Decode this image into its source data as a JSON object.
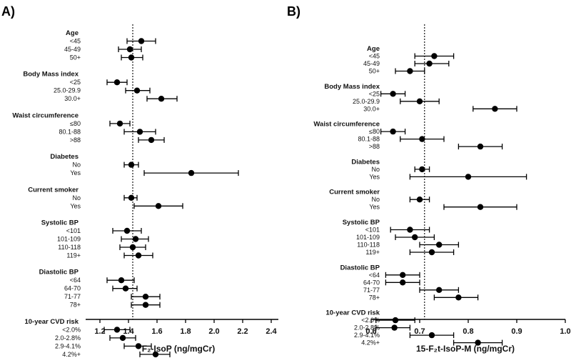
{
  "chart_data": [
    {
      "type": "forest",
      "panel_label": "A)",
      "xlabel": "F₂-IsoP  (ng/mgCr)",
      "xlim": [
        1.1,
        2.45
      ],
      "xticks": [
        "1.2",
        "1.4",
        "1.6",
        "1.8",
        "2.0",
        "2.2",
        "2.4"
      ],
      "reference_line": 1.43,
      "groups": [
        {
          "name": "Age",
          "rows": [
            {
              "label": "<45",
              "est": 1.49,
              "lo": 1.39,
              "hi": 1.59
            },
            {
              "label": "45-49",
              "est": 1.41,
              "lo": 1.33,
              "hi": 1.49
            },
            {
              "label": "50+",
              "est": 1.42,
              "lo": 1.35,
              "hi": 1.5
            }
          ]
        },
        {
          "name": "Body Mass index",
          "rows": [
            {
              "label": "<25",
              "est": 1.32,
              "lo": 1.25,
              "hi": 1.39
            },
            {
              "label": "25.0-29.9",
              "est": 1.46,
              "lo": 1.38,
              "hi": 1.55
            },
            {
              "label": "30.0+",
              "est": 1.63,
              "lo": 1.53,
              "hi": 1.74
            }
          ]
        },
        {
          "name": "Waist circumference",
          "rows": [
            {
              "label": "≤80",
              "est": 1.34,
              "lo": 1.27,
              "hi": 1.41
            },
            {
              "label": "80.1-88",
              "est": 1.48,
              "lo": 1.37,
              "hi": 1.59
            },
            {
              "label": ">88",
              "est": 1.56,
              "lo": 1.47,
              "hi": 1.65
            }
          ]
        },
        {
          "name": "Diabetes",
          "rows": [
            {
              "label": "No",
              "est": 1.42,
              "lo": 1.37,
              "hi": 1.47
            },
            {
              "label": "Yes",
              "est": 1.84,
              "lo": 1.51,
              "hi": 2.17
            }
          ]
        },
        {
          "name": "Current smoker",
          "rows": [
            {
              "label": "No",
              "est": 1.42,
              "lo": 1.37,
              "hi": 1.46
            },
            {
              "label": "Yes",
              "est": 1.61,
              "lo": 1.44,
              "hi": 1.78
            }
          ]
        },
        {
          "name": "Systolic BP",
          "rows": [
            {
              "label": "<101",
              "est": 1.39,
              "lo": 1.29,
              "hi": 1.49
            },
            {
              "label": "101-109",
              "est": 1.45,
              "lo": 1.35,
              "hi": 1.54
            },
            {
              "label": "110-118",
              "est": 1.43,
              "lo": 1.34,
              "hi": 1.52
            },
            {
              "label": "119+",
              "est": 1.47,
              "lo": 1.37,
              "hi": 1.57
            }
          ]
        },
        {
          "name": "Diastolic  BP",
          "rows": [
            {
              "label": "<64",
              "est": 1.35,
              "lo": 1.25,
              "hi": 1.44
            },
            {
              "label": "64-70",
              "est": 1.38,
              "lo": 1.29,
              "hi": 1.46
            },
            {
              "label": "71-77",
              "est": 1.52,
              "lo": 1.42,
              "hi": 1.62
            },
            {
              "label": "78+",
              "est": 1.52,
              "lo": 1.42,
              "hi": 1.62
            }
          ]
        },
        {
          "name": "10-year CVD risk",
          "rows": [
            {
              "label": "<2.0%",
              "est": 1.32,
              "lo": 1.23,
              "hi": 1.41
            },
            {
              "label": "2.0-2.8%",
              "est": 1.36,
              "lo": 1.27,
              "hi": 1.45
            },
            {
              "label": "2.9-4.1%",
              "est": 1.47,
              "lo": 1.37,
              "hi": 1.56
            },
            {
              "label": "4.2%+",
              "est": 1.59,
              "lo": 1.48,
              "hi": 1.69
            }
          ]
        }
      ]
    },
    {
      "type": "forest",
      "panel_label": "B)",
      "xlabel": "15-F₂t-IsoP-M  (ng/mgCr)",
      "xlim": [
        0.6,
        1.0
      ],
      "xticks": [
        "0.6",
        "0.7",
        "0.8",
        "0.9",
        "1.0"
      ],
      "reference_line": 0.71,
      "groups": [
        {
          "name": "Age",
          "rows": [
            {
              "label": "<45",
              "est": 0.73,
              "lo": 0.69,
              "hi": 0.77
            },
            {
              "label": "45-49",
              "est": 0.72,
              "lo": 0.69,
              "hi": 0.76
            },
            {
              "label": "50+",
              "est": 0.68,
              "lo": 0.65,
              "hi": 0.71
            }
          ]
        },
        {
          "name": "Body Mass index",
          "rows": [
            {
              "label": "<25",
              "est": 0.645,
              "lo": 0.62,
              "hi": 0.67
            },
            {
              "label": "25.0-29.9",
              "est": 0.7,
              "lo": 0.66,
              "hi": 0.74
            },
            {
              "label": "30.0+",
              "est": 0.855,
              "lo": 0.81,
              "hi": 0.9
            }
          ]
        },
        {
          "name": "Waist circumference",
          "rows": [
            {
              "label": "≤80",
              "est": 0.645,
              "lo": 0.62,
              "hi": 0.67
            },
            {
              "label": "80.1-88",
              "est": 0.705,
              "lo": 0.66,
              "hi": 0.75
            },
            {
              "label": ">88",
              "est": 0.825,
              "lo": 0.78,
              "hi": 0.87
            }
          ]
        },
        {
          "name": "Diabetes",
          "rows": [
            {
              "label": "No",
              "est": 0.705,
              "lo": 0.69,
              "hi": 0.72
            },
            {
              "label": "Yes",
              "est": 0.8,
              "lo": 0.68,
              "hi": 0.92
            }
          ]
        },
        {
          "name": "Current smoker",
          "rows": [
            {
              "label": "No",
              "est": 0.7,
              "lo": 0.68,
              "hi": 0.72
            },
            {
              "label": "Yes",
              "est": 0.825,
              "lo": 0.75,
              "hi": 0.9
            }
          ]
        },
        {
          "name": "Systolic BP",
          "rows": [
            {
              "label": "<101",
              "est": 0.68,
              "lo": 0.64,
              "hi": 0.72
            },
            {
              "label": "101-109",
              "est": 0.69,
              "lo": 0.65,
              "hi": 0.73
            },
            {
              "label": "110-118",
              "est": 0.74,
              "lo": 0.7,
              "hi": 0.78
            },
            {
              "label": "119+",
              "est": 0.725,
              "lo": 0.68,
              "hi": 0.77
            }
          ]
        },
        {
          "name": "Diastolic  BP",
          "rows": [
            {
              "label": "<64",
              "est": 0.665,
              "lo": 0.63,
              "hi": 0.7
            },
            {
              "label": "64-70",
              "est": 0.665,
              "lo": 0.63,
              "hi": 0.7
            },
            {
              "label": "71-77",
              "est": 0.74,
              "lo": 0.7,
              "hi": 0.78
            },
            {
              "label": "78+",
              "est": 0.78,
              "lo": 0.73,
              "hi": 0.82
            }
          ]
        },
        {
          "name": "10-year CVD risk",
          "rows": [
            {
              "label": "<2.0%",
              "est": 0.65,
              "lo": 0.61,
              "hi": 0.69
            },
            {
              "label": "2.0-2.8%",
              "est": 0.648,
              "lo": 0.61,
              "hi": 0.68
            },
            {
              "label": "2.9-4.1%",
              "est": 0.725,
              "lo": 0.68,
              "hi": 0.77
            },
            {
              "label": "4.2%+",
              "est": 0.82,
              "lo": 0.77,
              "hi": 0.87
            }
          ]
        }
      ]
    }
  ]
}
